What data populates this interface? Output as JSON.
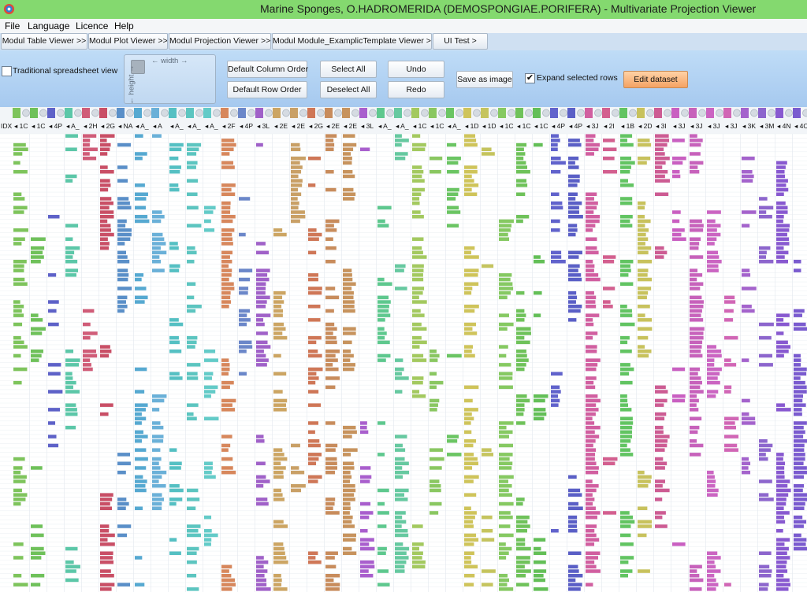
{
  "window": {
    "title": "Marine Sponges, O.HADROMERIDA (DEMOSPONGIAE.PORIFERA) - Multivariate Projection Viewer"
  },
  "menu": [
    "File",
    "Language",
    "Licence",
    "Help"
  ],
  "tabs": [
    "Modul Table Viewer >>",
    "Modul Plot Viewer >>",
    "Modul Projection Viewer >>",
    "Modul Module_ExamplicTemplate Viewer >>",
    "UI Test >"
  ],
  "toolbar": {
    "traditional_label": "Traditional spreadsheet view",
    "traditional_checked": false,
    "width_label": "← width →",
    "height_label": "← height →",
    "default_column_order": "Default Column Order",
    "default_row_order": "Default Row Order",
    "select_all": "Select All",
    "deselect_all": "Deselect All",
    "undo": "Undo",
    "redo": "Redo",
    "save_as_image": "Save as image",
    "expand_label": "Expand selected rows",
    "expand_checked": true,
    "edit_dataset": "Edit dataset"
  },
  "grid": {
    "index_header": "IDX",
    "columns": [
      {
        "label": "1C",
        "color": "#7ec45c"
      },
      {
        "label": "1C",
        "color": "#6fc15a"
      },
      {
        "label": "4P",
        "color": "#5e62c8"
      },
      {
        "label": "A_",
        "color": "#5cc7a8"
      },
      {
        "label": "2H",
        "color": "#d05c78"
      },
      {
        "label": "2G",
        "color": "#c94f66"
      },
      {
        "label": "NA",
        "color": "#5a8fc8"
      },
      {
        "label": "A_",
        "color": "#56a9d1"
      },
      {
        "label": "A",
        "color": "#6ab0d8"
      },
      {
        "label": "A_",
        "color": "#55c0c3"
      },
      {
        "label": "A_",
        "color": "#5cc5c0"
      },
      {
        "label": "A_",
        "color": "#63cbc8"
      },
      {
        "label": "2F",
        "color": "#d7875c"
      },
      {
        "label": "4P",
        "color": "#6b87c9"
      },
      {
        "label": "3L",
        "color": "#a061c8"
      },
      {
        "label": "2E",
        "color": "#cca563"
      },
      {
        "label": "2E",
        "color": "#c9a066"
      },
      {
        "label": "2G",
        "color": "#cf7757"
      },
      {
        "label": "2E",
        "color": "#c88c5c"
      },
      {
        "label": "2E",
        "color": "#c7935d"
      },
      {
        "label": "3L",
        "color": "#a95fcd"
      },
      {
        "label": "A_",
        "color": "#5ec88e"
      },
      {
        "label": "A_",
        "color": "#66c9a0"
      },
      {
        "label": "1C",
        "color": "#a3c95f"
      },
      {
        "label": "1C",
        "color": "#8ac761"
      },
      {
        "label": "A_",
        "color": "#6bc563"
      },
      {
        "label": "1D",
        "color": "#cfc45a"
      },
      {
        "label": "1D",
        "color": "#c5c45e"
      },
      {
        "label": "1C",
        "color": "#86c962"
      },
      {
        "label": "1C",
        "color": "#6fc25a"
      },
      {
        "label": "1C",
        "color": "#63bf57"
      },
      {
        "label": "4P",
        "color": "#6163cc"
      },
      {
        "label": "4P",
        "color": "#5a5fc6"
      },
      {
        "label": "3J",
        "color": "#d15fa0"
      },
      {
        "label": "2I",
        "color": "#d35f8f"
      },
      {
        "label": "1B",
        "color": "#62c462"
      },
      {
        "label": "2D",
        "color": "#c8c25d"
      },
      {
        "label": "3I",
        "color": "#cd5c93"
      },
      {
        "label": "3J",
        "color": "#c95fc1"
      },
      {
        "label": "3J",
        "color": "#c762bb"
      },
      {
        "label": "3J",
        "color": "#cb65c2"
      },
      {
        "label": "3J",
        "color": "#d166b5"
      },
      {
        "label": "3K",
        "color": "#a463cc"
      },
      {
        "label": "3M",
        "color": "#8d66cd"
      },
      {
        "label": "4N",
        "color": "#8859d0"
      },
      {
        "label": "4C",
        "color": "#7a5bcf"
      }
    ]
  }
}
